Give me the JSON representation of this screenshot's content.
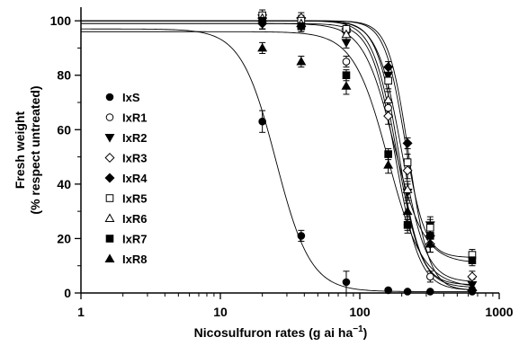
{
  "chart_data": {
    "type": "scatter",
    "title": "",
    "xlabel": "Nicosulfuron rates (g ai ha",
    "xlabel_sup": "−1",
    "xlabel_close": ")",
    "ylabel_line1": "Fresh weight",
    "ylabel_line2": "(% respect untreated)",
    "x_scale": "log",
    "xlim": [
      1,
      1000
    ],
    "ylim": [
      0,
      105
    ],
    "x_ticks": [
      1,
      10,
      100,
      1000
    ],
    "x_tick_labels": [
      "1",
      "10",
      "100",
      "1000"
    ],
    "y_ticks": [
      0,
      20,
      40,
      60,
      80,
      100
    ],
    "y_tick_labels": [
      "0",
      "20",
      "40",
      "60",
      "80",
      "100"
    ],
    "grid": false,
    "legend_position": "left-center",
    "series": [
      {
        "name": "IxS",
        "marker": "circle-filled",
        "upper": 97,
        "lower": 0.5,
        "ed50": 25,
        "slope": 3.5,
        "points": [
          {
            "x": 20,
            "y": 63,
            "err": 4
          },
          {
            "x": 38,
            "y": 21,
            "err": 2
          },
          {
            "x": 80,
            "y": 4,
            "err": 4
          },
          {
            "x": 160,
            "y": 1,
            "err": 0.5
          },
          {
            "x": 220,
            "y": 0.5,
            "err": 0.5
          },
          {
            "x": 320,
            "y": 0.5,
            "err": 0.5
          },
          {
            "x": 640,
            "y": 0.5,
            "err": 0.5
          }
        ]
      },
      {
        "name": "IxR1",
        "marker": "circle-open",
        "upper": 99,
        "lower": 1,
        "ed50": 180,
        "slope": 5,
        "points": [
          {
            "x": 20,
            "y": 100,
            "err": 3
          },
          {
            "x": 38,
            "y": 99,
            "err": 2
          },
          {
            "x": 80,
            "y": 85,
            "err": 2
          },
          {
            "x": 160,
            "y": 68,
            "err": 3
          },
          {
            "x": 220,
            "y": 25,
            "err": 3
          },
          {
            "x": 320,
            "y": 6,
            "err": 2
          },
          {
            "x": 640,
            "y": 1,
            "err": 1
          }
        ]
      },
      {
        "name": "IxR2",
        "marker": "triangle-down-filled",
        "upper": 100,
        "lower": 3,
        "ed50": 190,
        "slope": 5.5,
        "points": [
          {
            "x": 20,
            "y": 101,
            "err": 2
          },
          {
            "x": 38,
            "y": 100,
            "err": 2
          },
          {
            "x": 80,
            "y": 92,
            "err": 2
          },
          {
            "x": 160,
            "y": 80,
            "err": 3
          },
          {
            "x": 220,
            "y": 37,
            "err": 3
          },
          {
            "x": 320,
            "y": 25,
            "err": 3
          },
          {
            "x": 640,
            "y": 3,
            "err": 2
          }
        ]
      },
      {
        "name": "IxR3",
        "marker": "diamond-open",
        "upper": 100,
        "lower": 4,
        "ed50": 200,
        "slope": 5,
        "points": [
          {
            "x": 20,
            "y": 101,
            "err": 2
          },
          {
            "x": 38,
            "y": 101,
            "err": 2
          },
          {
            "x": 80,
            "y": 97,
            "err": 2
          },
          {
            "x": 160,
            "y": 65,
            "err": 3
          },
          {
            "x": 220,
            "y": 45,
            "err": 3
          },
          {
            "x": 320,
            "y": 18,
            "err": 3
          },
          {
            "x": 640,
            "y": 6,
            "err": 2
          }
        ]
      },
      {
        "name": "IxR4",
        "marker": "diamond-filled",
        "upper": 100,
        "lower": 1,
        "ed50": 225,
        "slope": 6,
        "points": [
          {
            "x": 20,
            "y": 99,
            "err": 2
          },
          {
            "x": 38,
            "y": 98,
            "err": 2
          },
          {
            "x": 80,
            "y": 96,
            "err": 2
          },
          {
            "x": 160,
            "y": 83,
            "err": 2
          },
          {
            "x": 220,
            "y": 55,
            "err": 2
          },
          {
            "x": 320,
            "y": 21,
            "err": 3
          },
          {
            "x": 640,
            "y": 1,
            "err": 1
          }
        ]
      },
      {
        "name": "IxR5",
        "marker": "square-open",
        "upper": 100,
        "lower": 13,
        "ed50": 210,
        "slope": 6,
        "points": [
          {
            "x": 20,
            "y": 102,
            "err": 2
          },
          {
            "x": 38,
            "y": 100,
            "err": 2
          },
          {
            "x": 80,
            "y": 97,
            "err": 2
          },
          {
            "x": 160,
            "y": 78,
            "err": 3
          },
          {
            "x": 220,
            "y": 48,
            "err": 3
          },
          {
            "x": 320,
            "y": 24,
            "err": 3
          },
          {
            "x": 640,
            "y": 14,
            "err": 2
          }
        ]
      },
      {
        "name": "IxR6",
        "marker": "triangle-up-open",
        "upper": 100,
        "lower": 2,
        "ed50": 185,
        "slope": 5,
        "points": [
          {
            "x": 20,
            "y": 101,
            "err": 2
          },
          {
            "x": 38,
            "y": 99,
            "err": 2
          },
          {
            "x": 80,
            "y": 95,
            "err": 2
          },
          {
            "x": 160,
            "y": 71,
            "err": 3
          },
          {
            "x": 220,
            "y": 38,
            "err": 3
          },
          {
            "x": 320,
            "y": 18,
            "err": 3
          },
          {
            "x": 640,
            "y": 2,
            "err": 2
          }
        ]
      },
      {
        "name": "IxR7",
        "marker": "square-filled",
        "upper": 99,
        "lower": 11,
        "ed50": 175,
        "slope": 4,
        "points": [
          {
            "x": 20,
            "y": 100,
            "err": 3
          },
          {
            "x": 38,
            "y": 98,
            "err": 2
          },
          {
            "x": 80,
            "y": 80,
            "err": 2
          },
          {
            "x": 160,
            "y": 51,
            "err": 2
          },
          {
            "x": 220,
            "y": 25,
            "err": 2
          },
          {
            "x": 320,
            "y": 21,
            "err": 3
          },
          {
            "x": 640,
            "y": 12,
            "err": 2
          }
        ]
      },
      {
        "name": "IxR8",
        "marker": "triangle-up-filled",
        "upper": 96,
        "lower": 2,
        "ed50": 160,
        "slope": 3.5,
        "points": [
          {
            "x": 20,
            "y": 90,
            "err": 2
          },
          {
            "x": 38,
            "y": 85,
            "err": 2
          },
          {
            "x": 80,
            "y": 76,
            "err": 3
          },
          {
            "x": 160,
            "y": 47,
            "err": 3
          },
          {
            "x": 220,
            "y": 30,
            "err": 3
          },
          {
            "x": 320,
            "y": 18,
            "err": 3
          },
          {
            "x": 640,
            "y": 2,
            "err": 2
          }
        ]
      }
    ]
  }
}
